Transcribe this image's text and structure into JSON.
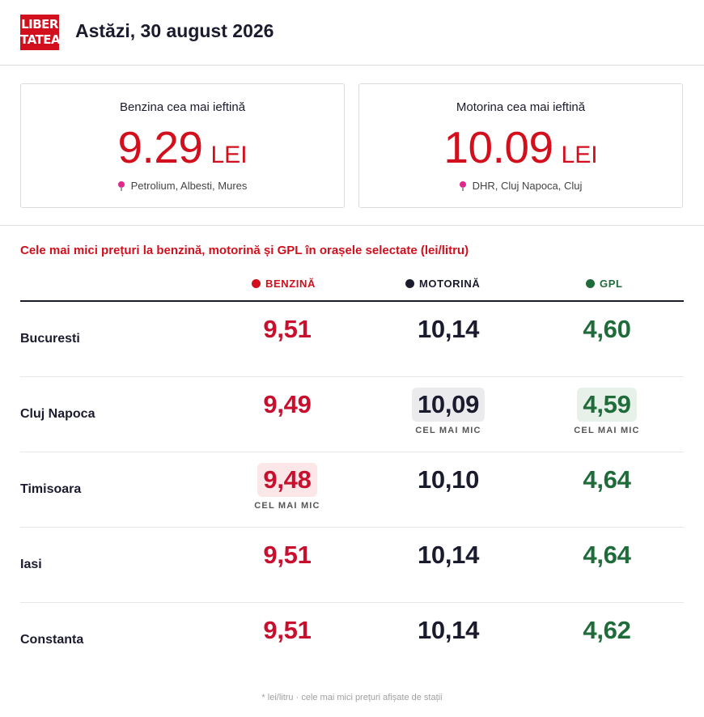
{
  "header": {
    "logo_line1": "LIBER",
    "logo_line2": "TATEA",
    "title": "Astăzi, 30 august 2026"
  },
  "cards": [
    {
      "title": "Benzina cea mai ieftină",
      "price": "9.29",
      "unit": "LEI",
      "location": "Petrolium, Albesti, Mures"
    },
    {
      "title": "Motorina cea mai ieftină",
      "price": "10.09",
      "unit": "LEI",
      "location": "DHR, Cluj Napoca, Cluj"
    }
  ],
  "section_title": "Cele mai mici prețuri la benzină, motorină și GPL în orașele selectate (lei/litru)",
  "columns": {
    "benzina": "BENZINĂ",
    "motorina": "MOTORINĂ",
    "gpl": "GPL"
  },
  "badge_label": "CEL MAI MIC",
  "rows": [
    {
      "city": "Bucuresti",
      "benzina": "9,51",
      "motorina": "10,14",
      "gpl": "4,60"
    },
    {
      "city": "Cluj Napoca",
      "benzina": "9,49",
      "motorina": "10,09",
      "gpl": "4,59"
    },
    {
      "city": "Timisoara",
      "benzina": "9,48",
      "motorina": "10,10",
      "gpl": "4,64"
    },
    {
      "city": "Iasi",
      "benzina": "9,51",
      "motorina": "10,14",
      "gpl": "4,64"
    },
    {
      "city": "Constanta",
      "benzina": "9,51",
      "motorina": "10,14",
      "gpl": "4,62"
    }
  ],
  "colors": {
    "accent_red": "#d20f1d",
    "navy": "#1b1b2e",
    "green": "#1f6b3a"
  },
  "footnote": "* lei/litru · cele mai mici prețuri afișate de stații"
}
